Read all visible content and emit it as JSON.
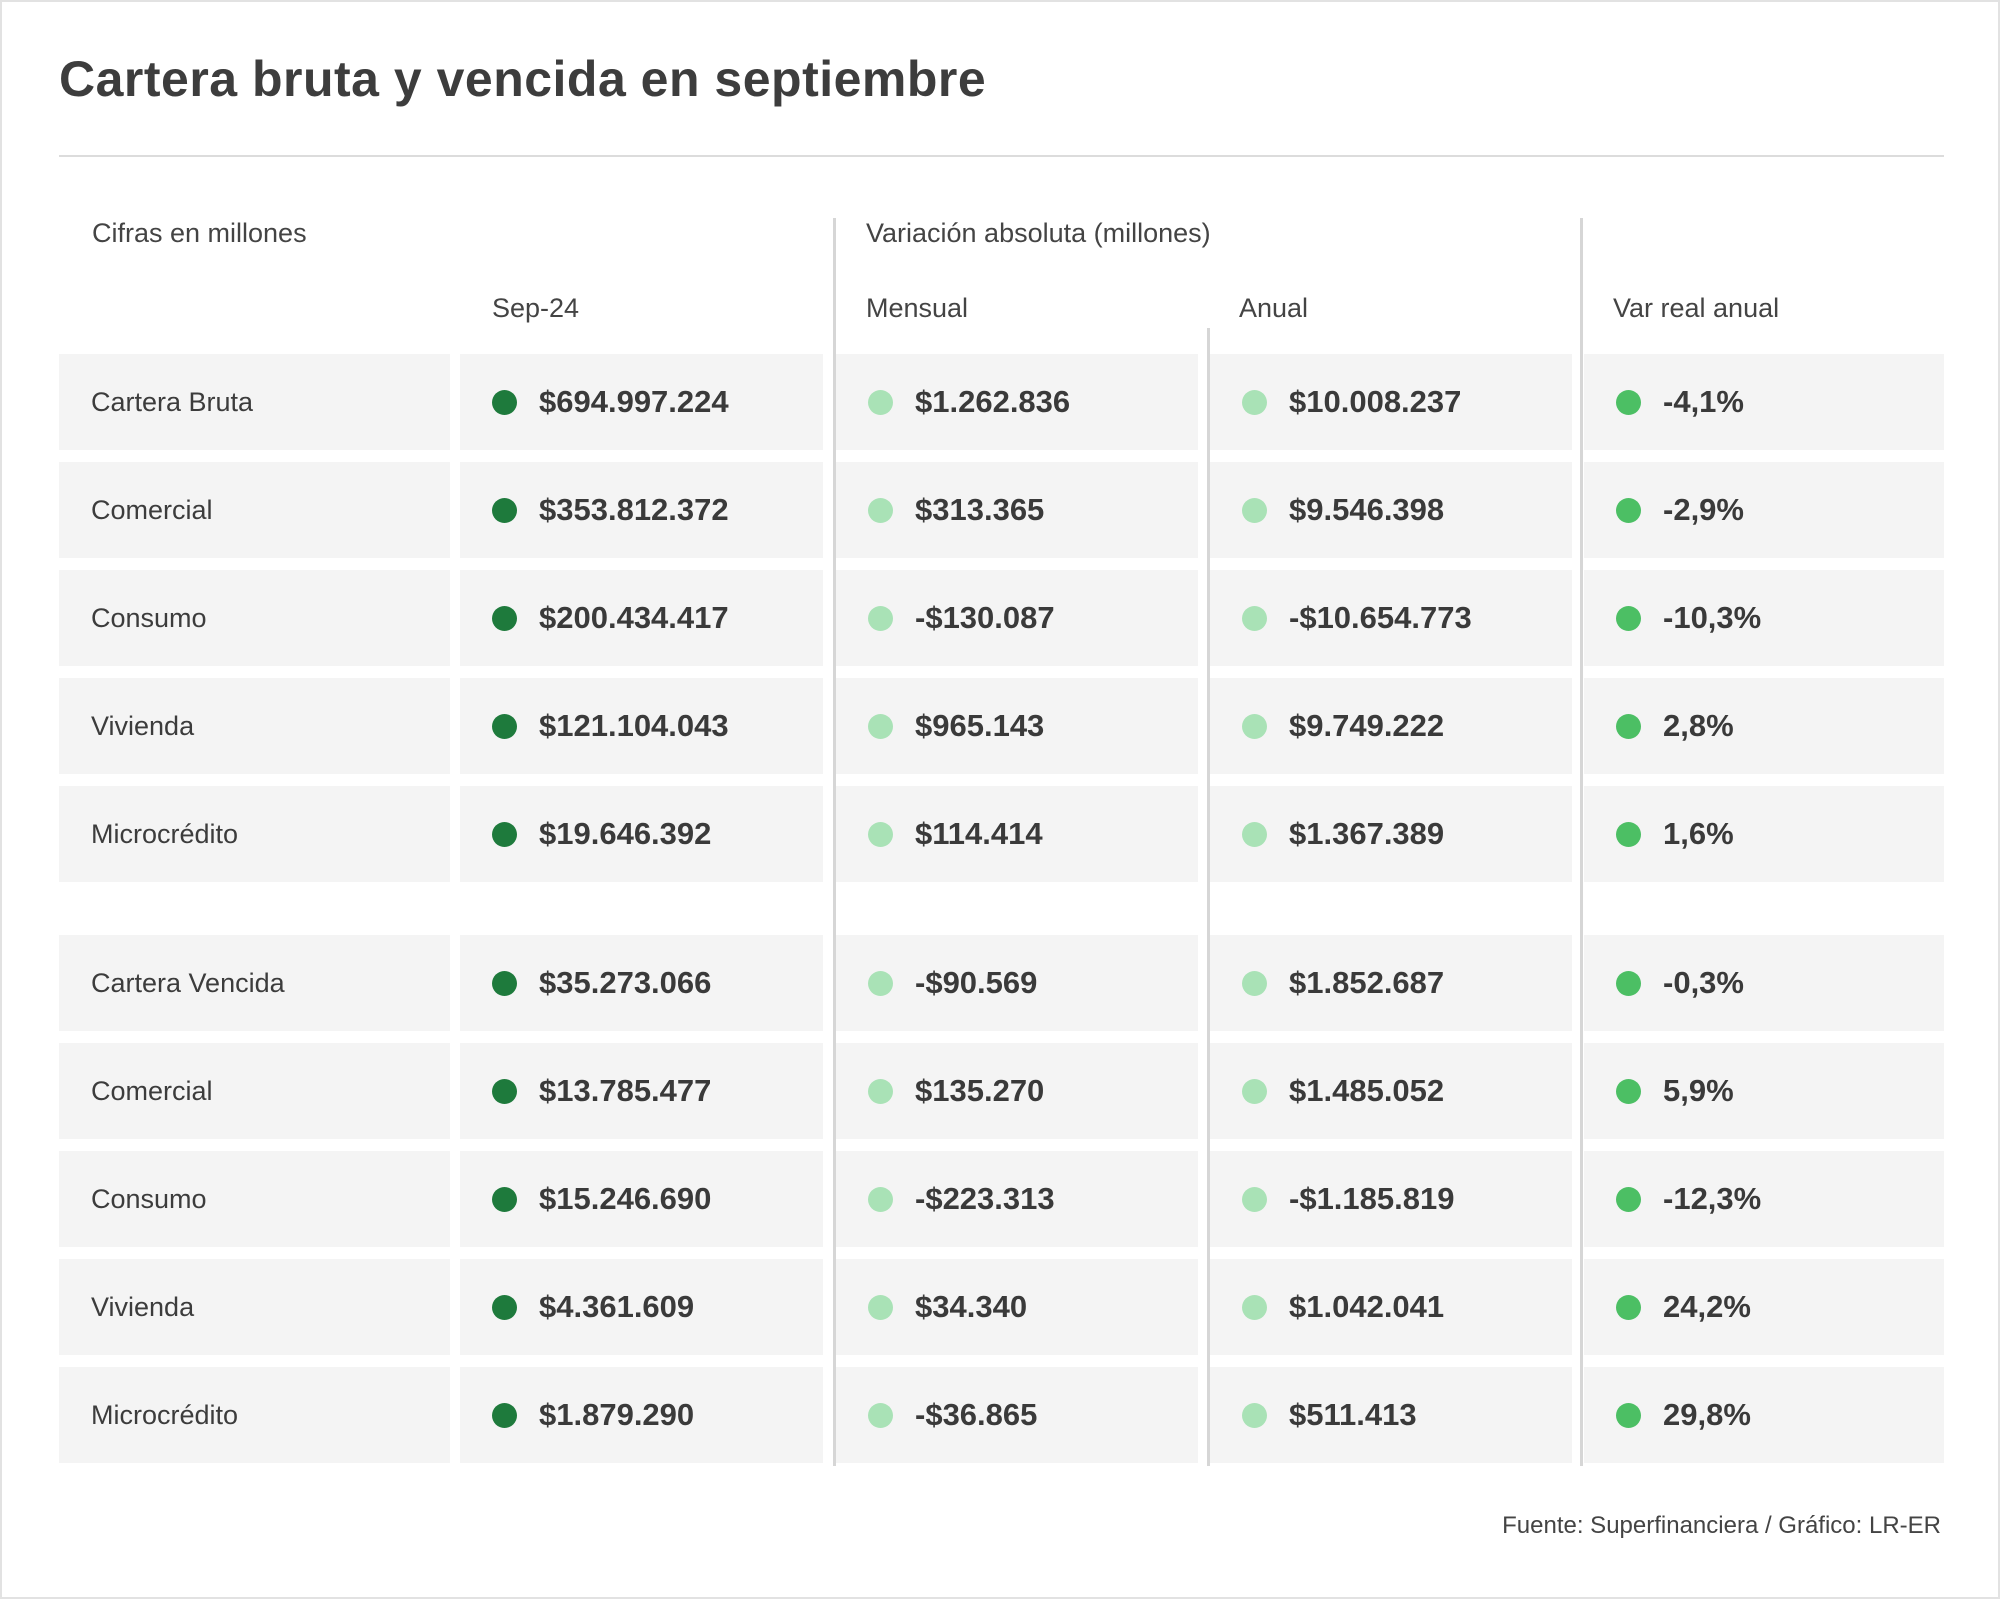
{
  "chart_data": {
    "type": "table",
    "title": "Cartera bruta y vencida en septiembre",
    "header_groups": {
      "label": "Cifras en millones",
      "variation": "Variación absoluta (millones)"
    },
    "columns": [
      "Sep-24",
      "Mensual",
      "Anual",
      "Var real anual"
    ],
    "groups": [
      {
        "rows": [
          {
            "label": "Cartera Bruta",
            "values": [
              "$694.997.224",
              "$1.262.836",
              "$10.008.237",
              "-4,1%"
            ]
          },
          {
            "label": "Comercial",
            "values": [
              "$353.812.372",
              "$313.365",
              "$9.546.398",
              "-2,9%"
            ]
          },
          {
            "label": "Consumo",
            "values": [
              "$200.434.417",
              "-$130.087",
              "-$10.654.773",
              "-10,3%"
            ]
          },
          {
            "label": "Vivienda",
            "values": [
              "$121.104.043",
              "$965.143",
              "$9.749.222",
              "2,8%"
            ]
          },
          {
            "label": "Microcrédito",
            "values": [
              "$19.646.392",
              "$114.414",
              "$1.367.389",
              "1,6%"
            ]
          }
        ]
      },
      {
        "rows": [
          {
            "label": "Cartera Vencida",
            "values": [
              "$35.273.066",
              "-$90.569",
              "$1.852.687",
              "-0,3%"
            ]
          },
          {
            "label": "Comercial",
            "values": [
              "$13.785.477",
              "$135.270",
              "$1.485.052",
              "5,9%"
            ]
          },
          {
            "label": "Consumo",
            "values": [
              "$15.246.690",
              "-$223.313",
              "-$1.185.819",
              "-12,3%"
            ]
          },
          {
            "label": "Vivienda",
            "values": [
              "$4.361.609",
              "$34.340",
              "$1.042.041",
              "24,2%"
            ]
          },
          {
            "label": "Microcrédito",
            "values": [
              "$1.879.290",
              "-$36.865",
              "$511.413",
              "29,8%"
            ]
          }
        ]
      }
    ],
    "source": "Fuente: Superfinanciera / Gráfico: LR-ER",
    "colors": {
      "sep24_dot": "#1e7a3c",
      "variation_dot": "#a9e2b6",
      "real_dot": "#4cbf64",
      "cell_bg": "#f4f4f4"
    }
  }
}
